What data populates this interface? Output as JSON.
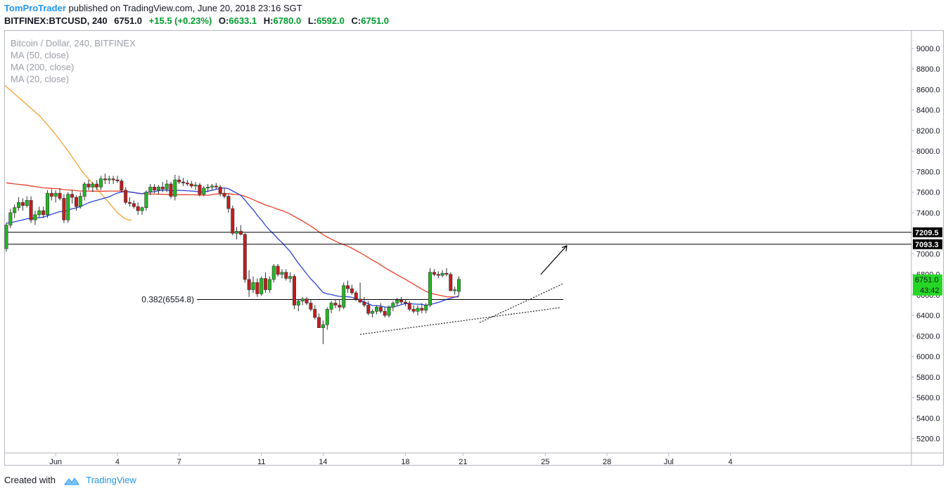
{
  "header": {
    "author": "TomProTrader",
    "published_text": "published on TradingView.com, June 20, 2018 23:16 SGT",
    "symbol": "BITFINEX:BTCUSD, 240",
    "last": "6751.0",
    "change": "+15.5 (+0.23%)",
    "open_label": "O:",
    "open": "6633.1",
    "high_label": "H:",
    "high": "6780.0",
    "low_label": "L:",
    "low": "6592.0",
    "close_label": "C:",
    "close": "6751.0"
  },
  "legend": {
    "title": "Bitcoin / Dollar, 240, BITFINEX",
    "ma50": "MA (50, close)",
    "ma200": "MA (200, close)",
    "ma20": "MA (20, close)"
  },
  "footer": {
    "created_with": "Created with",
    "brand": "TradingView"
  },
  "colors": {
    "up": "#22b822",
    "down": "#c11d1d",
    "ma50": "#e8412b",
    "ma200": "#f7a233",
    "ma20": "#2b43d6",
    "brand": "#2196f3",
    "price_badge": "#26d826"
  },
  "chart_data": {
    "type": "candlestick",
    "title": "Bitcoin / Dollar, 240, BITFINEX",
    "xlabel": "",
    "ylabel": "",
    "ylim": [
      5100,
      9200
    ],
    "y_ticks": [
      "5200.0",
      "5400.0",
      "5600.0",
      "5800.0",
      "6000.0",
      "6200.0",
      "6400.0",
      "6600.0",
      "6800.0",
      "7000.0",
      "7200.0",
      "7400.0",
      "7600.0",
      "7800.0",
      "8000.0",
      "8200.0",
      "8400.0",
      "8600.0",
      "8800.0",
      "9000.0"
    ],
    "x_ticks": [
      {
        "label": "Jun",
        "bar": 12
      },
      {
        "label": "4",
        "bar": 27
      },
      {
        "label": "7",
        "bar": 42
      },
      {
        "label": "11",
        "bar": 62
      },
      {
        "label": "14",
        "bar": 77
      },
      {
        "label": "18",
        "bar": 97
      },
      {
        "label": "21",
        "bar": 111
      },
      {
        "label": "25",
        "bar": 131
      },
      {
        "label": "28",
        "bar": 146
      },
      {
        "label": "Jul",
        "bar": 161
      },
      {
        "label": "4",
        "bar": 176
      }
    ],
    "candles": [
      [
        7050,
        7300,
        7020,
        7280
      ],
      [
        7280,
        7440,
        7250,
        7400
      ],
      [
        7400,
        7480,
        7350,
        7450
      ],
      [
        7450,
        7550,
        7420,
        7500
      ],
      [
        7500,
        7540,
        7420,
        7470
      ],
      [
        7470,
        7560,
        7450,
        7520
      ],
      [
        7520,
        7560,
        7300,
        7330
      ],
      [
        7330,
        7420,
        7280,
        7380
      ],
      [
        7380,
        7460,
        7350,
        7420
      ],
      [
        7420,
        7460,
        7350,
        7380
      ],
      [
        7380,
        7620,
        7350,
        7590
      ],
      [
        7590,
        7630,
        7520,
        7560
      ],
      [
        7560,
        7620,
        7500,
        7590
      ],
      [
        7590,
        7640,
        7520,
        7540
      ],
      [
        7540,
        7580,
        7300,
        7330
      ],
      [
        7330,
        7600,
        7300,
        7580
      ],
      [
        7580,
        7620,
        7490,
        7550
      ],
      [
        7550,
        7570,
        7420,
        7460
      ],
      [
        7460,
        7600,
        7440,
        7560
      ],
      [
        7560,
        7700,
        7520,
        7680
      ],
      [
        7680,
        7720,
        7620,
        7650
      ],
      [
        7650,
        7700,
        7600,
        7680
      ],
      [
        7680,
        7720,
        7620,
        7650
      ],
      [
        7650,
        7760,
        7620,
        7730
      ],
      [
        7730,
        7780,
        7680,
        7720
      ],
      [
        7720,
        7760,
        7680,
        7730
      ],
      [
        7730,
        7760,
        7680,
        7720
      ],
      [
        7720,
        7760,
        7690,
        7710
      ],
      [
        7710,
        7730,
        7600,
        7620
      ],
      [
        7620,
        7650,
        7480,
        7500
      ],
      [
        7500,
        7550,
        7460,
        7490
      ],
      [
        7490,
        7520,
        7440,
        7460
      ],
      [
        7460,
        7500,
        7380,
        7420
      ],
      [
        7420,
        7460,
        7380,
        7450
      ],
      [
        7450,
        7620,
        7420,
        7600
      ],
      [
        7600,
        7680,
        7570,
        7650
      ],
      [
        7650,
        7680,
        7590,
        7620
      ],
      [
        7620,
        7670,
        7580,
        7650
      ],
      [
        7650,
        7700,
        7600,
        7630
      ],
      [
        7630,
        7720,
        7600,
        7680
      ],
      [
        7680,
        7700,
        7540,
        7560
      ],
      [
        7560,
        7770,
        7520,
        7720
      ],
      [
        7720,
        7760,
        7680,
        7700
      ],
      [
        7700,
        7740,
        7660,
        7690
      ],
      [
        7690,
        7720,
        7660,
        7680
      ],
      [
        7680,
        7710,
        7640,
        7660
      ],
      [
        7660,
        7700,
        7620,
        7670
      ],
      [
        7670,
        7690,
        7560,
        7580
      ],
      [
        7580,
        7660,
        7560,
        7640
      ],
      [
        7640,
        7680,
        7600,
        7650
      ],
      [
        7650,
        7680,
        7620,
        7660
      ],
      [
        7660,
        7690,
        7630,
        7650
      ],
      [
        7650,
        7670,
        7560,
        7590
      ],
      [
        7590,
        7640,
        7540,
        7560
      ],
      [
        7560,
        7580,
        7400,
        7440
      ],
      [
        7440,
        7470,
        7180,
        7200
      ],
      [
        7200,
        7260,
        7140,
        7220
      ],
      [
        7220,
        7280,
        7180,
        7190
      ],
      [
        7190,
        7200,
        6720,
        6750
      ],
      [
        6750,
        6840,
        6580,
        6650
      ],
      [
        6650,
        6780,
        6620,
        6720
      ],
      [
        6720,
        6760,
        6580,
        6610
      ],
      [
        6610,
        6780,
        6590,
        6760
      ],
      [
        6760,
        6820,
        6620,
        6650
      ],
      [
        6650,
        6780,
        6620,
        6750
      ],
      [
        6750,
        6900,
        6720,
        6880
      ],
      [
        6880,
        6900,
        6780,
        6800
      ],
      [
        6800,
        6850,
        6760,
        6820
      ],
      [
        6820,
        6850,
        6740,
        6760
      ],
      [
        6760,
        6820,
        6720,
        6780
      ],
      [
        6780,
        6800,
        6460,
        6500
      ],
      [
        6500,
        6560,
        6440,
        6540
      ],
      [
        6540,
        6580,
        6500,
        6560
      ],
      [
        6560,
        6580,
        6500,
        6520
      ],
      [
        6520,
        6550,
        6440,
        6460
      ],
      [
        6460,
        6500,
        6360,
        6380
      ],
      [
        6380,
        6420,
        6300,
        6280
      ],
      [
        6280,
        6350,
        6120,
        6310
      ],
      [
        6310,
        6480,
        6260,
        6460
      ],
      [
        6460,
        6540,
        6420,
        6520
      ],
      [
        6520,
        6560,
        6470,
        6500
      ],
      [
        6500,
        6560,
        6440,
        6480
      ],
      [
        6480,
        6720,
        6460,
        6690
      ],
      [
        6690,
        6740,
        6620,
        6660
      ],
      [
        6660,
        6700,
        6600,
        6620
      ],
      [
        6620,
        6640,
        6540,
        6560
      ],
      [
        6560,
        6720,
        6520,
        6530
      ],
      [
        6530,
        6580,
        6480,
        6500
      ],
      [
        6500,
        6540,
        6400,
        6420
      ],
      [
        6420,
        6460,
        6380,
        6440
      ],
      [
        6440,
        6500,
        6410,
        6480
      ],
      [
        6480,
        6520,
        6420,
        6440
      ],
      [
        6440,
        6480,
        6380,
        6400
      ],
      [
        6400,
        6500,
        6380,
        6480
      ],
      [
        6480,
        6540,
        6440,
        6520
      ],
      [
        6520,
        6570,
        6490,
        6550
      ],
      [
        6550,
        6580,
        6510,
        6530
      ],
      [
        6530,
        6560,
        6490,
        6520
      ],
      [
        6520,
        6540,
        6440,
        6460
      ],
      [
        6460,
        6500,
        6420,
        6440
      ],
      [
        6440,
        6500,
        6400,
        6470
      ],
      [
        6470,
        6520,
        6420,
        6450
      ],
      [
        6450,
        6520,
        6420,
        6500
      ],
      [
        6500,
        6860,
        6480,
        6820
      ],
      [
        6820,
        6850,
        6780,
        6800
      ],
      [
        6800,
        6830,
        6760,
        6790
      ],
      [
        6790,
        6840,
        6770,
        6810
      ],
      [
        6810,
        6860,
        6780,
        6800
      ],
      [
        6800,
        6820,
        6640,
        6640
      ],
      [
        6640,
        6680,
        6600,
        6650
      ],
      [
        6633,
        6780,
        6592,
        6751
      ]
    ],
    "ma200": [
      [
        0,
        8640
      ],
      [
        10,
        8580
      ],
      [
        20,
        8520
      ],
      [
        30,
        8460
      ],
      [
        40,
        8400
      ],
      [
        50,
        8340
      ],
      [
        60,
        8260
      ],
      [
        70,
        8180
      ],
      [
        80,
        8090
      ],
      [
        90,
        8000
      ],
      [
        100,
        7900
      ],
      [
        110,
        7800
      ],
      [
        120,
        7720
      ],
      [
        130,
        7640
      ],
      [
        140,
        7560
      ],
      [
        150,
        7480
      ],
      [
        160,
        7400
      ],
      [
        170,
        7345
      ],
      [
        176,
        7330
      ],
      [
        180,
        7330
      ]
    ],
    "ma50": [
      [
        0,
        7660
      ],
      [
        10,
        7520
      ],
      [
        20,
        7440
      ],
      [
        30,
        7420
      ],
      [
        40,
        7420
      ],
      [
        50,
        7440
      ],
      [
        60,
        7480
      ],
      [
        70,
        7520
      ],
      [
        80,
        7560
      ],
      [
        90,
        7600
      ],
      [
        100,
        7640
      ],
      [
        110,
        7680
      ],
      [
        120,
        7720
      ],
      [
        130,
        7760
      ],
      [
        140,
        7780
      ],
      [
        150,
        7800
      ],
      [
        160,
        7820
      ],
      [
        170,
        7820
      ],
      [
        180,
        7840
      ],
      [
        190,
        7850
      ],
      [
        200,
        7860
      ],
      [
        210,
        7860
      ],
      [
        220,
        7870
      ],
      [
        230,
        7880
      ],
      [
        240,
        7880
      ],
      [
        250,
        7860
      ],
      [
        260,
        7840
      ],
      [
        280,
        7800
      ],
      [
        300,
        7760
      ],
      [
        320,
        7720
      ],
      [
        340,
        7680
      ],
      [
        360,
        7640
      ],
      [
        380,
        7600
      ],
      [
        400,
        7560
      ],
      [
        420,
        7520
      ],
      [
        440,
        7480
      ],
      [
        460,
        7440
      ],
      [
        480,
        7400
      ],
      [
        500,
        7360
      ],
      [
        520,
        7320
      ],
      [
        540,
        7280
      ],
      [
        560,
        7240
      ],
      [
        580,
        7200
      ],
      [
        600,
        7160
      ],
      [
        620,
        7120
      ],
      [
        640,
        7080
      ],
      [
        660,
        7040
      ],
      [
        680,
        7000
      ],
      [
        700,
        6960
      ],
      [
        720,
        6920
      ],
      [
        740,
        6880
      ],
      [
        760,
        6840
      ],
      [
        770,
        6820
      ]
    ],
    "ma20": [
      [
        0,
        7300
      ],
      [
        10,
        7260
      ],
      [
        20,
        7230
      ],
      [
        30,
        7260
      ],
      [
        40,
        7290
      ],
      [
        50,
        7310
      ],
      [
        60,
        7340
      ],
      [
        70,
        7380
      ],
      [
        80,
        7420
      ],
      [
        90,
        7460
      ],
      [
        100,
        7500
      ],
      [
        110,
        7540
      ],
      [
        120,
        7580
      ],
      [
        130,
        7620
      ],
      [
        140,
        7640
      ],
      [
        150,
        7660
      ],
      [
        160,
        7680
      ],
      [
        170,
        7700
      ],
      [
        180,
        7720
      ],
      [
        190,
        7740
      ],
      [
        200,
        7760
      ],
      [
        210,
        7780
      ],
      [
        220,
        7760
      ],
      [
        230,
        7740
      ],
      [
        240,
        7720
      ],
      [
        250,
        7700
      ],
      [
        260,
        7680
      ],
      [
        270,
        7660
      ],
      [
        280,
        7640
      ],
      [
        290,
        7620
      ],
      [
        300,
        7600
      ],
      [
        310,
        7580
      ],
      [
        320,
        7560
      ],
      [
        330,
        7540
      ],
      [
        340,
        7520
      ],
      [
        350,
        7500
      ],
      [
        360,
        7480
      ],
      [
        370,
        7460
      ],
      [
        380,
        7440
      ],
      [
        390,
        7420
      ],
      [
        400,
        7400
      ],
      [
        410,
        7380
      ],
      [
        420,
        7360
      ],
      [
        430,
        7340
      ],
      [
        440,
        7320
      ],
      [
        450,
        7300
      ],
      [
        460,
        7280
      ],
      [
        470,
        7260
      ],
      [
        480,
        7240
      ],
      [
        490,
        7220
      ],
      [
        500,
        7200
      ],
      [
        510,
        7180
      ],
      [
        520,
        7160
      ],
      [
        530,
        7140
      ],
      [
        540,
        7120
      ],
      [
        550,
        7100
      ],
      [
        560,
        7080
      ],
      [
        570,
        7060
      ],
      [
        580,
        7040
      ],
      [
        590,
        7020
      ],
      [
        600,
        7000
      ],
      [
        610,
        6980
      ],
      [
        620,
        6960
      ],
      [
        630,
        6940
      ],
      [
        640,
        6920
      ],
      [
        650,
        6900
      ],
      [
        660,
        6880
      ],
      [
        670,
        6860
      ],
      [
        680,
        6840
      ],
      [
        690,
        6820
      ],
      [
        700,
        6800
      ],
      [
        710,
        6780
      ],
      [
        720,
        6760
      ],
      [
        730,
        6740
      ],
      [
        740,
        6720
      ],
      [
        750,
        6700
      ],
      [
        760,
        6680
      ],
      [
        770,
        6660
      ]
    ],
    "levels": [
      {
        "price": 7209.5,
        "label": "7209.5"
      },
      {
        "price": 7093.3,
        "label": "7093.3"
      }
    ],
    "fib": {
      "price": 6554.8,
      "label": "0.382(6554.8)"
    },
    "current_price": {
      "price": 6751.0,
      "label": "6751.0",
      "timer": "43:42"
    }
  }
}
